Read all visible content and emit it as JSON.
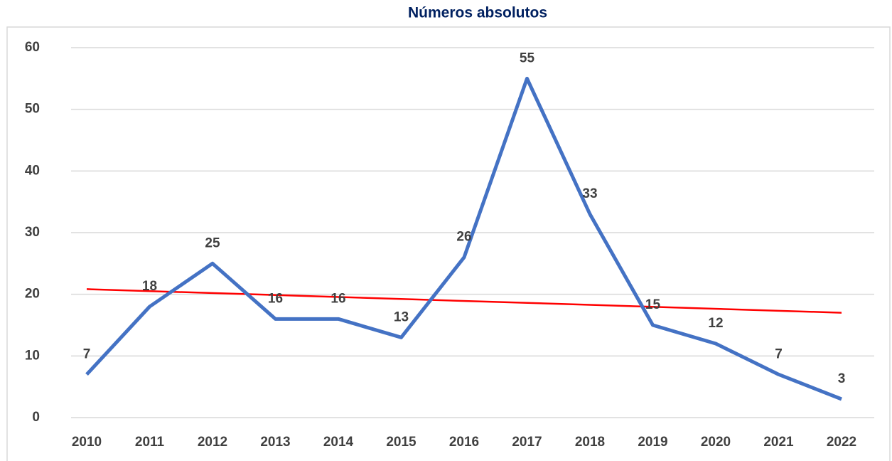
{
  "chart_data": {
    "type": "line",
    "title": "Números absolutos",
    "categories": [
      "2010",
      "2011",
      "2012",
      "2013",
      "2014",
      "2015",
      "2016",
      "2017",
      "2018",
      "2019",
      "2020",
      "2021",
      "2022"
    ],
    "series": [
      {
        "name": null,
        "color": "#4472c4",
        "values": [
          7,
          18,
          25,
          16,
          16,
          13,
          26,
          55,
          33,
          15,
          12,
          7,
          3
        ]
      }
    ],
    "trendline": {
      "type": "linear",
      "color": "#ff0000"
    },
    "ylim": [
      0,
      60
    ],
    "yticks": [
      0,
      10,
      20,
      30,
      40,
      50,
      60
    ],
    "grid": true,
    "data_labels": true
  }
}
